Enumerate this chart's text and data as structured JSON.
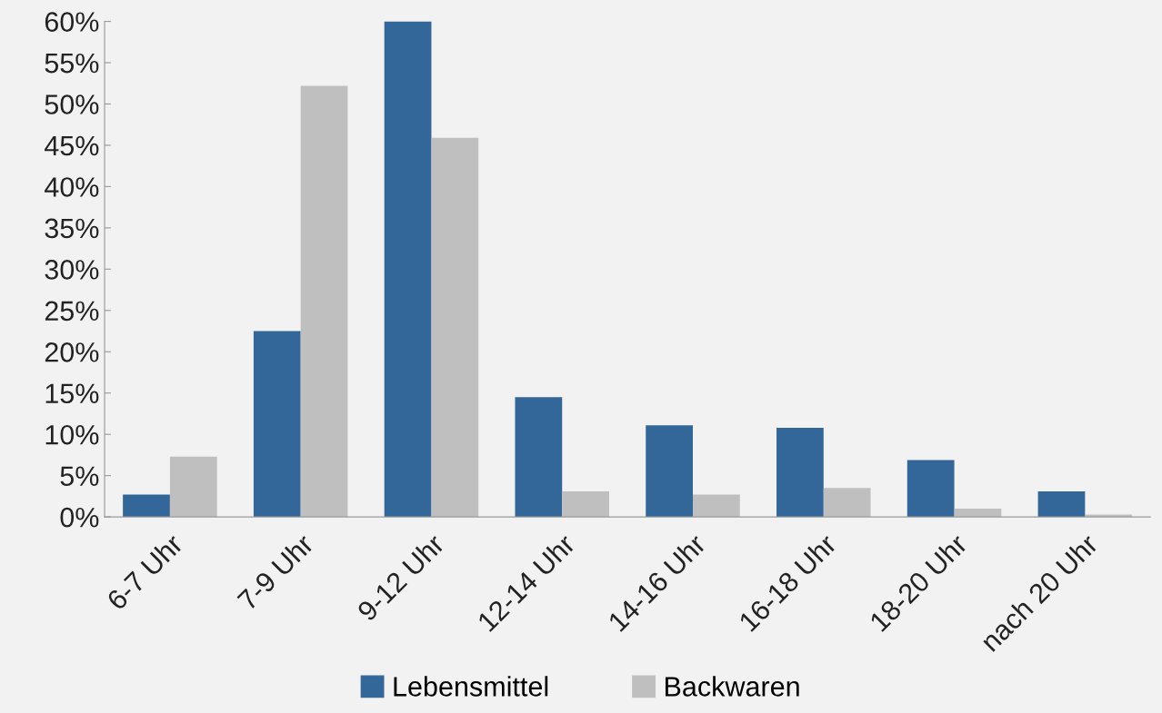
{
  "chart_data": {
    "type": "bar",
    "categories": [
      "6-7 Uhr",
      "7-9 Uhr",
      "9-12 Uhr",
      "12-14 Uhr",
      "14-16 Uhr",
      "16-18 Uhr",
      "18-20 Uhr",
      "nach 20 Uhr"
    ],
    "series": [
      {
        "name": "Lebensmittel",
        "color": "#336699",
        "values": [
          2.7,
          22.5,
          60,
          14.5,
          11.1,
          10.8,
          6.9,
          3.1
        ]
      },
      {
        "name": "Backwaren",
        "color": "#bfbfbf",
        "values": [
          7.3,
          52.2,
          45.9,
          3.1,
          2.7,
          3.5,
          1.0,
          0.3
        ]
      }
    ],
    "ylim": [
      0,
      60
    ],
    "yticks": [
      {
        "value": 0,
        "label": "0%"
      },
      {
        "value": 5,
        "label": "5%"
      },
      {
        "value": 10,
        "label": "10%"
      },
      {
        "value": 15,
        "label": "15%"
      },
      {
        "value": 20,
        "label": "20%"
      },
      {
        "value": 25,
        "label": "25%"
      },
      {
        "value": 30,
        "label": "30%"
      },
      {
        "value": 35,
        "label": "35%"
      },
      {
        "value": 40,
        "label": "40%"
      },
      {
        "value": 45,
        "label": "45%"
      },
      {
        "value": 50,
        "label": "50%"
      },
      {
        "value": 55,
        "label": "55%"
      },
      {
        "value": 60,
        "label": "60%"
      }
    ],
    "grid": false,
    "legend": "bottom"
  }
}
